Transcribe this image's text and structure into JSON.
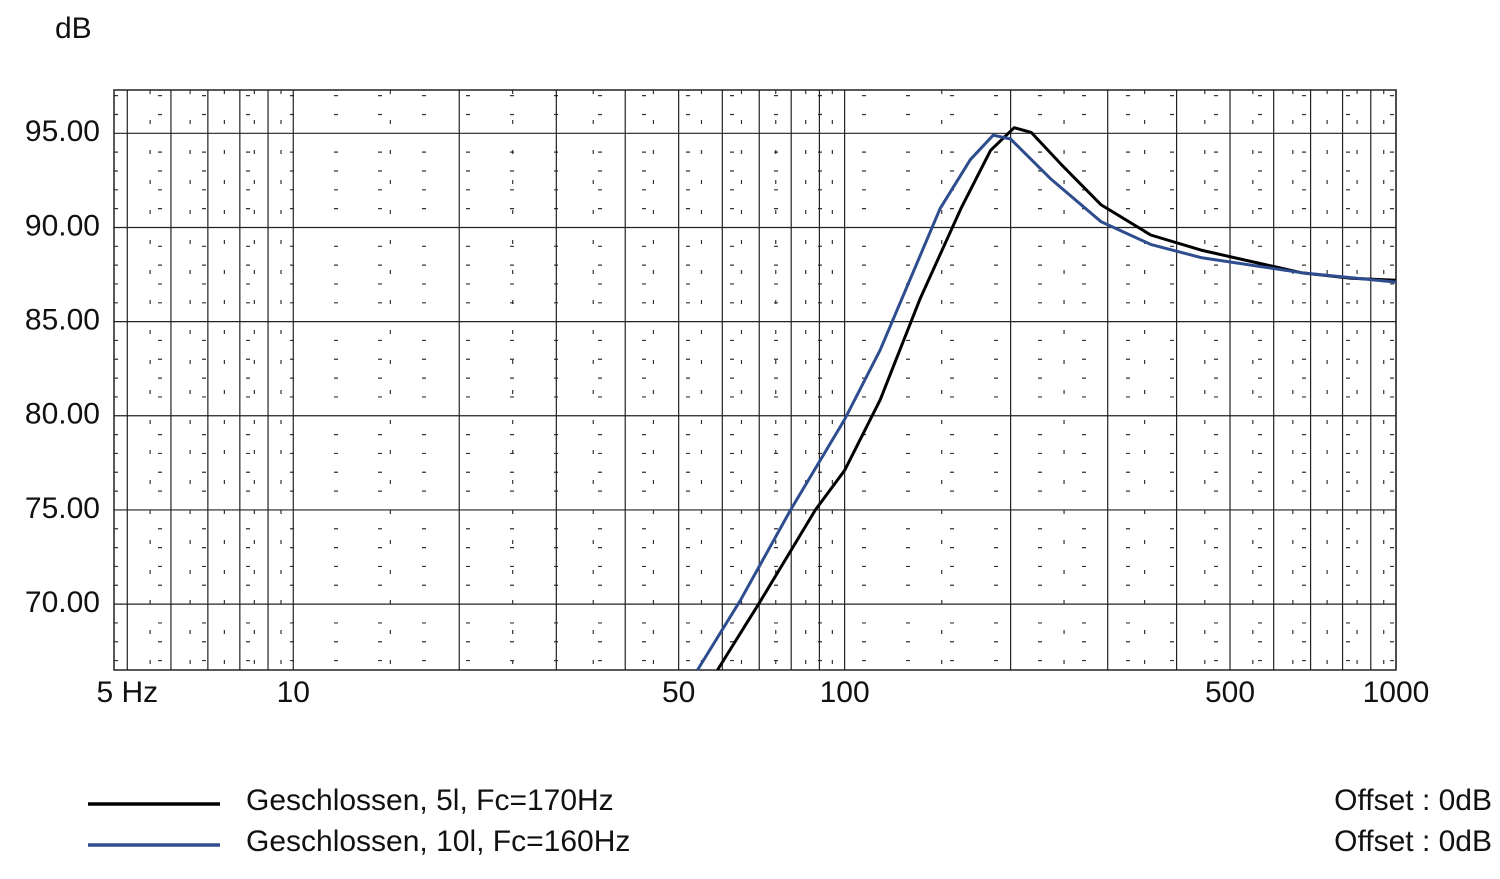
{
  "chart_data": {
    "type": "line",
    "log_x": true,
    "y_label": "dB",
    "xlim": [
      4.73,
      1000
    ],
    "ylim": [
      66.5,
      97.3
    ],
    "xticks": [
      {
        "value": 5,
        "label": "5 Hz"
      },
      10,
      50,
      100,
      500,
      1000
    ],
    "yticks": [
      {
        "value": 70,
        "label": "70.00"
      },
      {
        "value": 75,
        "label": "75.00"
      },
      {
        "value": 80,
        "label": "80.00"
      },
      {
        "value": 85,
        "label": "85.00"
      },
      {
        "value": 90,
        "label": "90.00"
      },
      {
        "value": 95,
        "label": "95.00"
      }
    ],
    "xgrid": [
      6,
      7,
      8,
      9,
      20,
      30,
      40,
      60,
      70,
      80,
      90,
      200,
      300,
      400,
      600,
      700,
      800,
      900
    ],
    "xdashed": [
      5.5,
      6.5,
      7.5,
      8.5,
      9.5,
      15,
      25,
      35,
      45,
      55,
      65,
      75,
      85,
      95,
      150,
      250,
      350,
      450,
      550,
      650,
      750,
      850,
      950
    ],
    "ydashed": [
      67,
      68,
      69,
      71,
      72,
      73,
      74,
      76,
      77,
      78,
      79,
      81,
      82,
      83,
      84,
      86,
      87,
      88,
      89,
      91,
      92,
      93,
      94,
      96,
      97
    ],
    "grid": true,
    "series": [
      {
        "name": "Geschlossen, 5l, Fc=170Hz",
        "color": "#000000",
        "offset_label": "Offset : 0dB",
        "x": [
          58.8,
          70.5,
          88.5,
          100,
          116,
          137,
          162.5,
          184,
          203,
          218,
          247,
          292,
          359,
          443,
          545,
          673,
          829,
          1000
        ],
        "values": [
          66.5,
          70.2,
          75.0,
          77.1,
          80.85,
          86.2,
          91.0,
          94.1,
          95.3,
          95.05,
          93.35,
          91.2,
          89.6,
          88.8,
          88.2,
          87.6,
          87.3,
          87.2
        ]
      },
      {
        "name": "Geschlossen, 10l, Fc=160Hz",
        "color": "#2e4d8f",
        "offset_label": "Offset : 0dB",
        "x": [
          54.1,
          64.7,
          79.8,
          100,
          116,
          149,
          169,
          186,
          200,
          237,
          292,
          359,
          443,
          673,
          1000
        ],
        "values": [
          66.5,
          70.2,
          75.0,
          79.8,
          83.5,
          91.0,
          93.6,
          94.9,
          94.7,
          92.55,
          90.3,
          89.1,
          88.4,
          87.6,
          87.1
        ]
      }
    ]
  }
}
